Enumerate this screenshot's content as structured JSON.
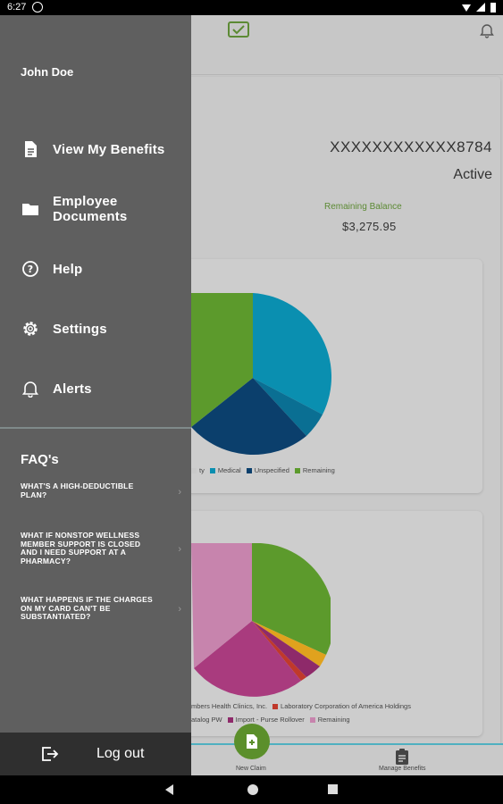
{
  "status_bar": {
    "time": "6:27"
  },
  "drawer": {
    "user_name": "John Doe",
    "menu": [
      {
        "label": "View My Benefits",
        "icon": "document-icon"
      },
      {
        "label": "Employee Documents",
        "icon": "folder-icon"
      },
      {
        "label": "Help",
        "icon": "help-icon"
      },
      {
        "label": "Settings",
        "icon": "gear-icon"
      },
      {
        "label": "Alerts",
        "icon": "bell-icon"
      }
    ],
    "faq_title": "FAQ's",
    "faqs": [
      {
        "question": "WHAT'S A HIGH-DEDUCTIBLE PLAN?"
      },
      {
        "question": "WHAT IF NONSTOP WELLNESS MEMBER SUPPORT IS CLOSED AND I NEED SUPPORT AT A PHARMACY?"
      },
      {
        "question": "WHAT HAPPENS IF THE CHARGES ON MY CARD CAN'T BE SUBSTANTIATED?"
      }
    ],
    "logout_label": "Log out"
  },
  "account": {
    "number": "XXXXXXXXXXXX8784",
    "status": "Active",
    "remaining_balance_label": "Remaining Balance",
    "remaining_balance_value": "$3,275.95"
  },
  "chart1_legend": [
    {
      "label": "ty",
      "color": "#c9c9c9"
    },
    {
      "label": "Medical",
      "color": "#0a8fb0"
    },
    {
      "label": "Unspecified",
      "color": "#0b3f6c"
    },
    {
      "label": "Remaining",
      "color": "#5c9a2c"
    }
  ],
  "chart2_legend_row1": [
    {
      "label": "mbers Health Clinics, Inc.",
      "color": "#c9c9c9"
    },
    {
      "label": "Laboratory Corporation of America Holdings",
      "color": "#c0392b"
    }
  ],
  "chart2_legend_row2": [
    {
      "label": "atalog PW",
      "color": "#c9c9c9"
    },
    {
      "label": "Import - Purse Rollover",
      "color": "#8e2a6a"
    },
    {
      "label": "Remaining",
      "color": "#c784ad"
    }
  ],
  "bottom_nav": {
    "new_claim": "New Claim",
    "manage_benefits": "Manage Benefits"
  },
  "colors": {
    "drawer_bg": "#5f5f5f",
    "logout_bg": "#2f2f2f",
    "brand_green": "#5c9a2c",
    "accent_teal": "#4fb0c0"
  }
}
